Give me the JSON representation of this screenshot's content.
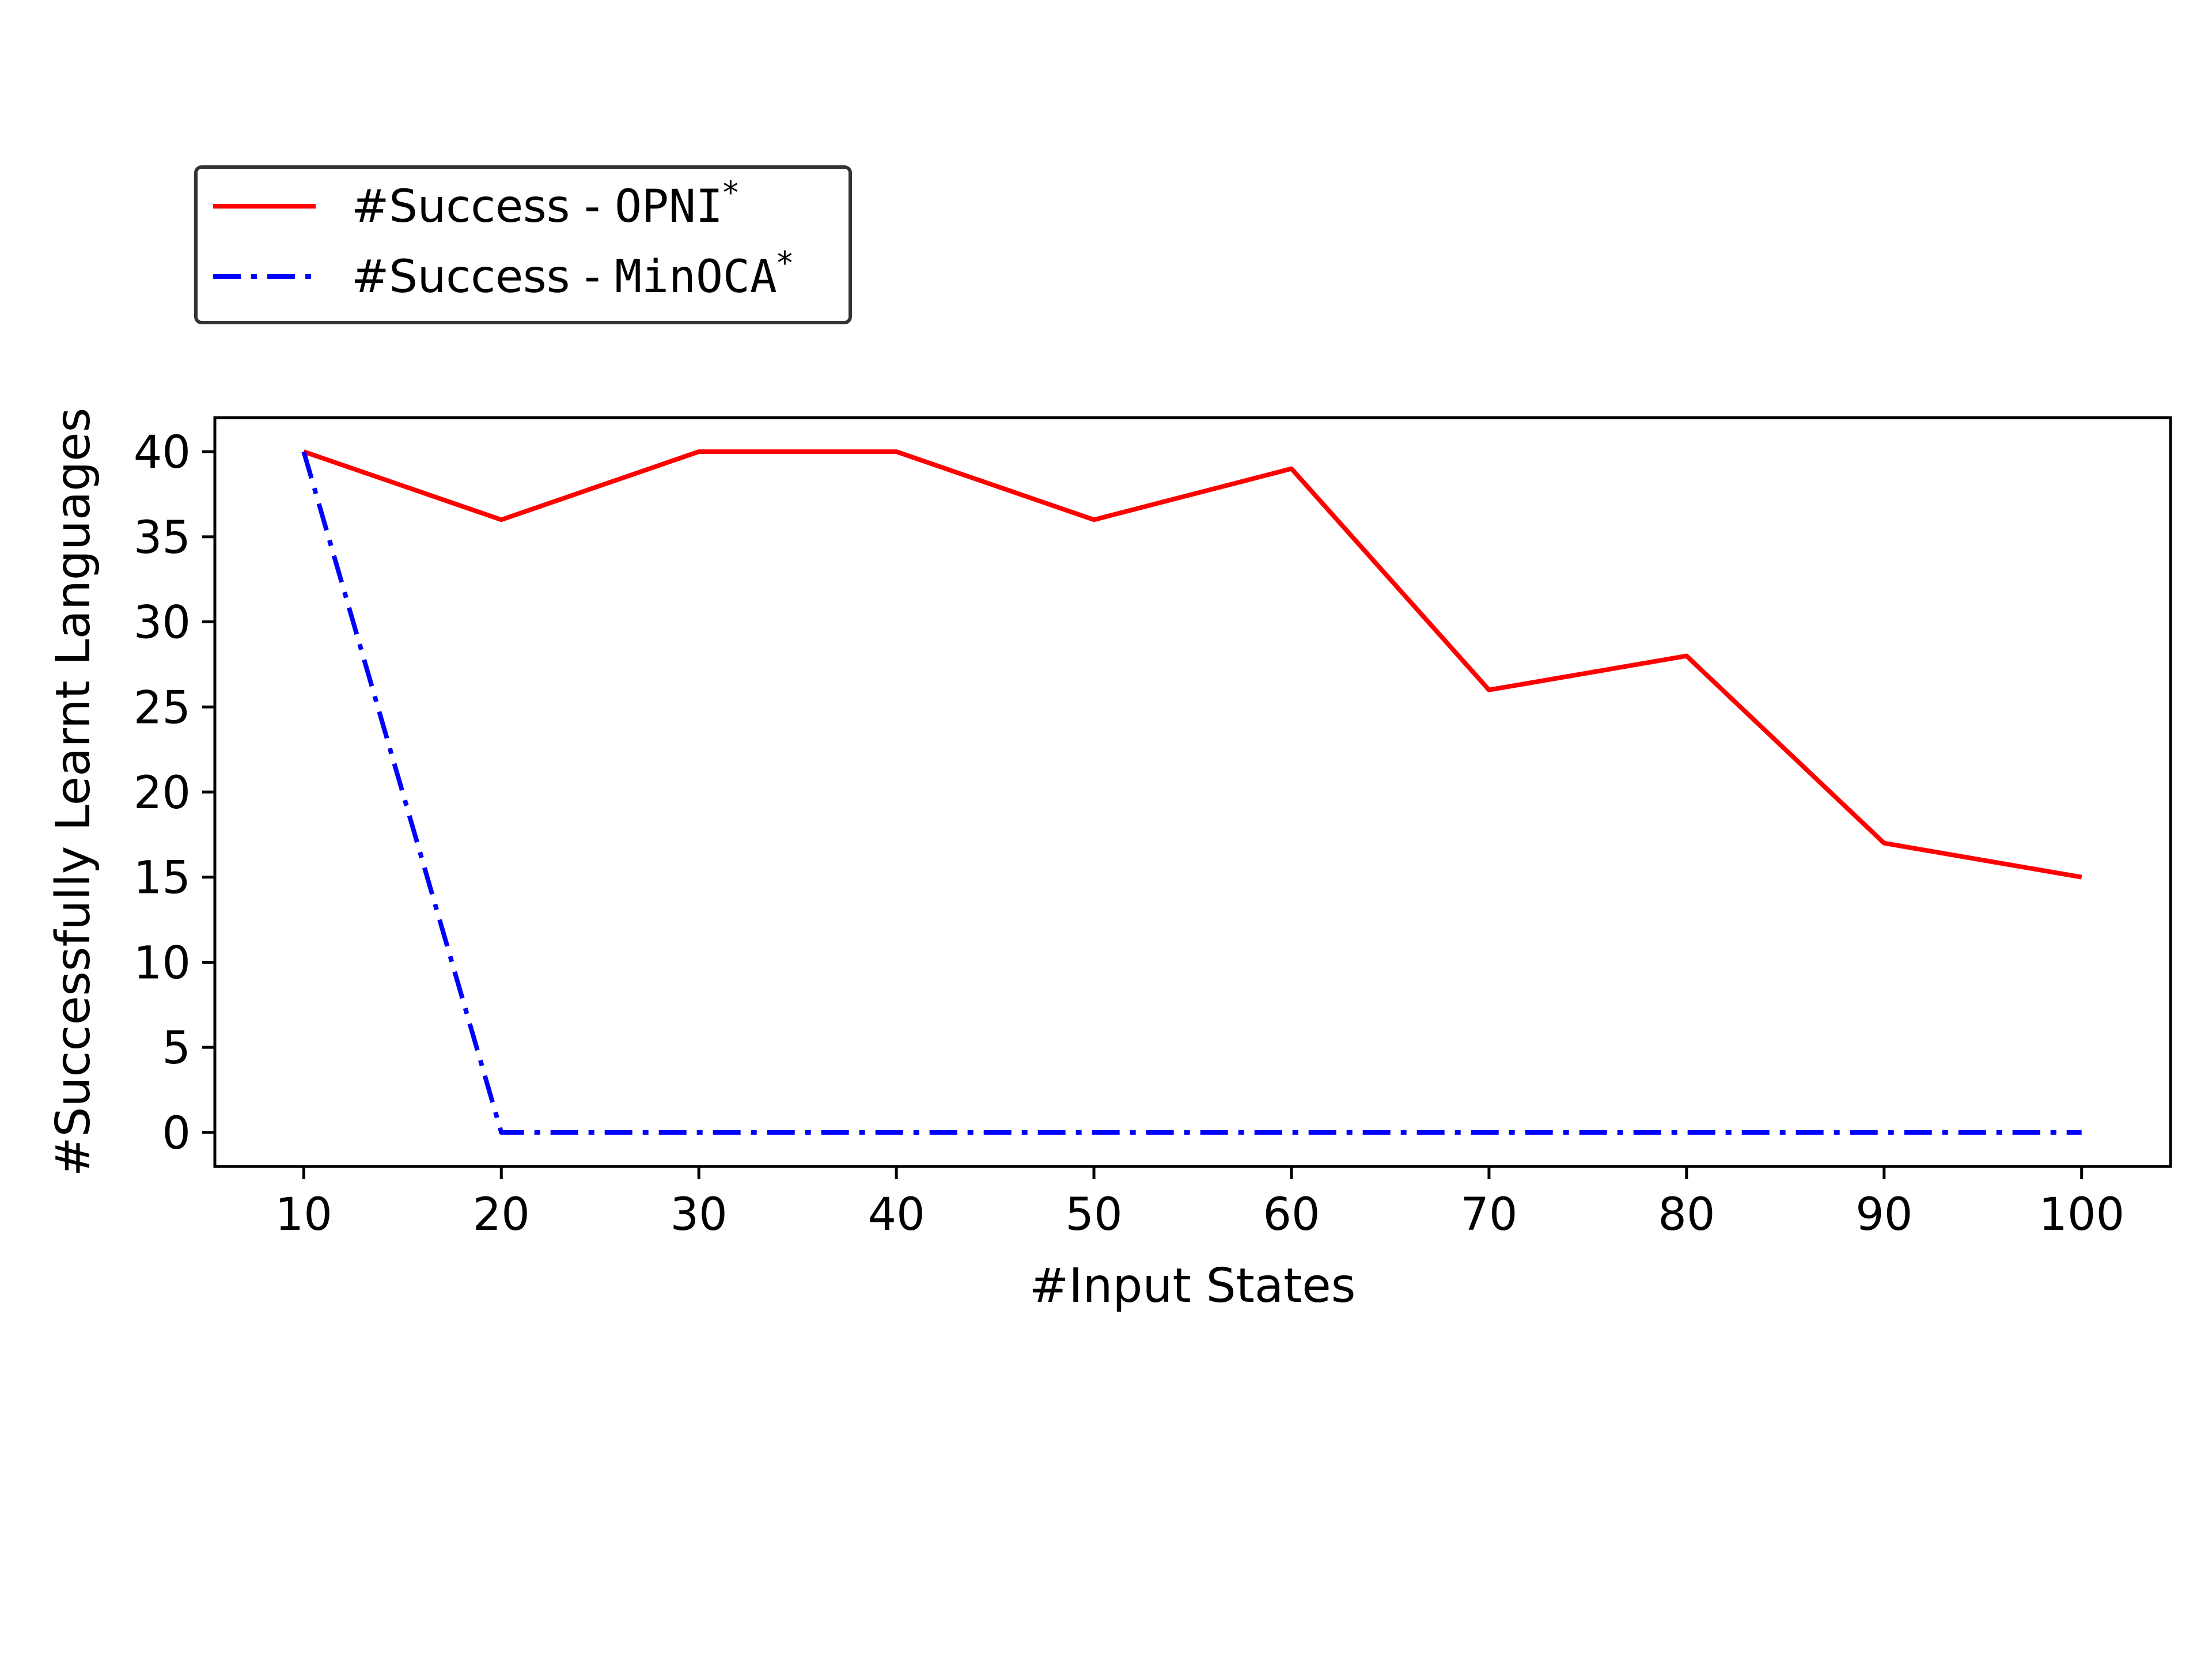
{
  "chart_data": {
    "type": "line",
    "title": "",
    "xlabel": "#Input States",
    "ylabel": "#Successfully Learnt Languages",
    "x": [
      10,
      20,
      30,
      40,
      50,
      60,
      70,
      80,
      90,
      100
    ],
    "xlim": [
      5.5,
      104.5
    ],
    "ylim": [
      -2,
      42
    ],
    "xticks": [
      10,
      20,
      30,
      40,
      50,
      60,
      70,
      80,
      90,
      100
    ],
    "yticks": [
      0,
      5,
      10,
      15,
      20,
      25,
      30,
      35,
      40
    ],
    "grid": false,
    "legend_position": "top-left, above plot",
    "series": [
      {
        "name": "#Success - OPNI*",
        "legend_prefix": "#Success - ",
        "legend_method": "OPNI",
        "legend_sup": "*",
        "values": [
          40,
          36,
          40,
          40,
          36,
          39,
          26,
          28,
          17,
          15
        ],
        "color": "#ff0000",
        "style": "solid"
      },
      {
        "name": "#Success - MinOCA*",
        "legend_prefix": "#Success - ",
        "legend_method": "MinOCA",
        "legend_sup": "*",
        "values": [
          40,
          0,
          0,
          0,
          0,
          0,
          0,
          0,
          0,
          0
        ],
        "color": "#0000ff",
        "style": "dashdot"
      }
    ]
  }
}
